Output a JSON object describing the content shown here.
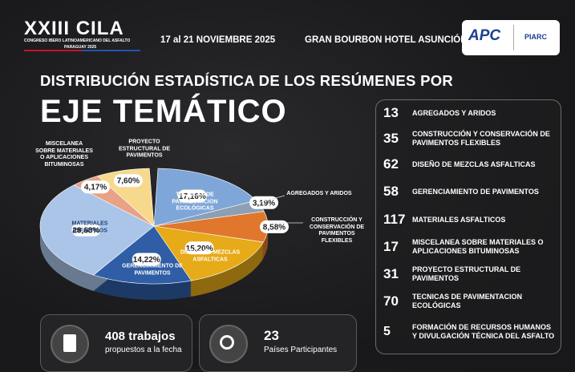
{
  "header": {
    "logo_title": "XXIII CILA",
    "logo_subtitle": "CONGRESO IBERO LATINOAMERICANO DEL ASFALTO",
    "logo_place": "PARAGUAY 2025",
    "dates": "17 al 21 NOVIEMBRE 2025",
    "venue": "GRAN BOURBON HOTEL ASUNCIÓN",
    "partner_1": "APC",
    "partner_2": "PIARC"
  },
  "chart_data": {
    "type": "pie",
    "title": "DISTRIBUCIÓN ESTADÍSTICA DE LOS RESÚMENES POR",
    "subtitle": "EJE TEMÁTICO",
    "categories": [
      "TECNICAS DE PAVIMENTACION ECOLÓGICAS",
      "AGREGADOS Y ARIDOS",
      "CONSTRUCCIÓN Y CONSERVACIÓN DE PAVIMENTOS FLEXIBLES",
      "DISEÑO DE MEZCLAS ASFALTICAS",
      "GERENCIAMIENTO DE PAVIMENTOS",
      "MATERIALES ASFALTICOS",
      "MISCELANEA SOBRE MATERIALES O APLICACIONES BITUMINOSAS",
      "PROYECTO ESTRUCTURAL DE PAVIMENTOS"
    ],
    "values": [
      17.16,
      3.19,
      8.58,
      15.2,
      14.22,
      28.68,
      4.17,
      7.6
    ],
    "value_labels": [
      "17,16%",
      "3,19%",
      "8,58%",
      "15,20%",
      "14,22%",
      "28,68%",
      "4,17%",
      "7,60%"
    ],
    "colors": [
      "#7fa6d8",
      "#8d9fb4",
      "#e0772c",
      "#e7aa18",
      "#2f5ea6",
      "#aac5e8",
      "#e9a285",
      "#f6d98c"
    ]
  },
  "list": [
    {
      "count": "13",
      "label": "AGREGADOS Y ARIDOS"
    },
    {
      "count": "35",
      "label": "CONSTRUCCIÓN Y CONSERVACIÓN DE PAVIMENTOS FLEXIBLES"
    },
    {
      "count": "62",
      "label": "DISEÑO DE MEZCLAS ASFALTICAS"
    },
    {
      "count": "58",
      "label": "GERENCIAMIENTO DE PAVIMENTOS"
    },
    {
      "count": "117",
      "label": "MATERIALES ASFALTICOS"
    },
    {
      "count": "17",
      "label": "MISCELANEA SOBRE MATERIALES O APLICACIONES BITUMINOSAS"
    },
    {
      "count": "31",
      "label": "PROYECTO ESTRUCTURAL DE PAVIMENTOS"
    },
    {
      "count": "70",
      "label": "TECNICAS DE PAVIMENTACION ECOLÓGICAS"
    },
    {
      "count": "5",
      "label": "FORMACIÓN DE RECURSOS HUMANOS Y DIVULGACIÓN TÉCNICA DEL ASFALTO"
    }
  ],
  "stats": [
    {
      "value": "408 trabajos",
      "label": "propuestos a la fecha"
    },
    {
      "value": "23",
      "label": "Países Participantes"
    }
  ]
}
